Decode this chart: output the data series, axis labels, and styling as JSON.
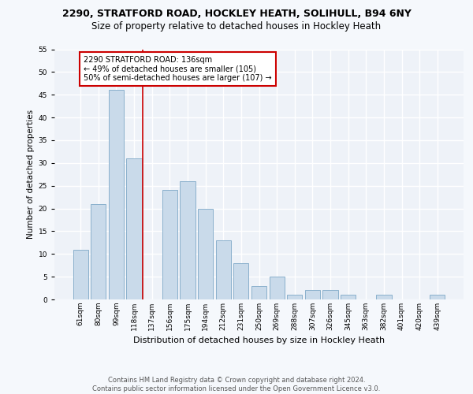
{
  "title1": "2290, STRATFORD ROAD, HOCKLEY HEATH, SOLIHULL, B94 6NY",
  "title2": "Size of property relative to detached houses in Hockley Heath",
  "xlabel": "Distribution of detached houses by size in Hockley Heath",
  "ylabel": "Number of detached properties",
  "categories": [
    "61sqm",
    "80sqm",
    "99sqm",
    "118sqm",
    "137sqm",
    "156sqm",
    "175sqm",
    "194sqm",
    "212sqm",
    "231sqm",
    "250sqm",
    "269sqm",
    "288sqm",
    "307sqm",
    "326sqm",
    "345sqm",
    "363sqm",
    "382sqm",
    "401sqm",
    "420sqm",
    "439sqm"
  ],
  "values": [
    11,
    21,
    46,
    31,
    0,
    24,
    26,
    20,
    13,
    8,
    3,
    5,
    1,
    2,
    2,
    1,
    0,
    1,
    0,
    0,
    1
  ],
  "bar_color": "#c9daea",
  "bar_edge_color": "#8ab0cc",
  "vline_color": "#cc0000",
  "annotation_lines": [
    "2290 STRATFORD ROAD: 136sqm",
    "← 49% of detached houses are smaller (105)",
    "50% of semi-detached houses are larger (107) →"
  ],
  "ylim": [
    0,
    55
  ],
  "yticks": [
    0,
    5,
    10,
    15,
    20,
    25,
    30,
    35,
    40,
    45,
    50,
    55
  ],
  "footer1": "Contains HM Land Registry data © Crown copyright and database right 2024.",
  "footer2": "Contains public sector information licensed under the Open Government Licence v3.0.",
  "bg_color": "#eef2f8",
  "grid_color": "#ffffff",
  "fig_bg_color": "#f5f8fc",
  "title1_fontsize": 9,
  "title2_fontsize": 8.5,
  "ylabel_fontsize": 7.5,
  "xlabel_fontsize": 8,
  "tick_fontsize": 6.5,
  "annotation_fontsize": 7,
  "footer_fontsize": 6
}
